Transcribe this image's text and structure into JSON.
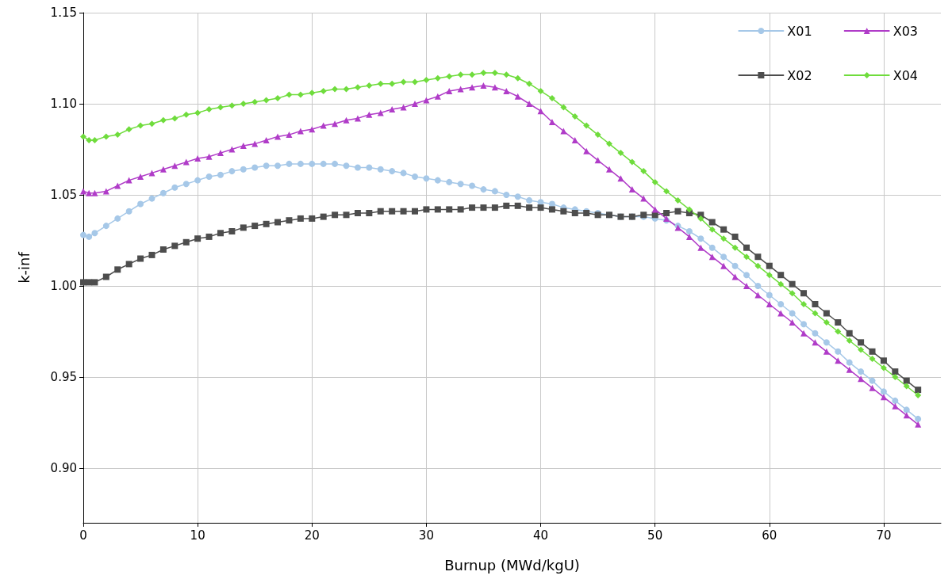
{
  "chart_data": {
    "type": "line",
    "xlabel": "Burnup (MWd/kgU)",
    "ylabel": "k-inf",
    "x": [
      0,
      0.5,
      1,
      2,
      3,
      4,
      5,
      6,
      7,
      8,
      9,
      10,
      11,
      12,
      13,
      14,
      15,
      16,
      17,
      18,
      19,
      20,
      21,
      22,
      23,
      24,
      25,
      26,
      27,
      28,
      29,
      30,
      31,
      32,
      33,
      34,
      35,
      36,
      37,
      38,
      39,
      40,
      41,
      42,
      43,
      44,
      45,
      46,
      47,
      48,
      49,
      50,
      51,
      52,
      53,
      54,
      55,
      56,
      57,
      58,
      59,
      60,
      61,
      62,
      63,
      64,
      65,
      66,
      67,
      68,
      69,
      70,
      71,
      72,
      73
    ],
    "series": [
      {
        "name": "X01",
        "color": "#a6c8e8",
        "marker": "circle",
        "values": [
          1.028,
          1.027,
          1.029,
          1.033,
          1.037,
          1.041,
          1.045,
          1.048,
          1.051,
          1.054,
          1.056,
          1.058,
          1.06,
          1.061,
          1.063,
          1.064,
          1.065,
          1.066,
          1.066,
          1.067,
          1.067,
          1.067,
          1.067,
          1.067,
          1.066,
          1.065,
          1.065,
          1.064,
          1.063,
          1.062,
          1.06,
          1.059,
          1.058,
          1.057,
          1.056,
          1.055,
          1.053,
          1.052,
          1.05,
          1.049,
          1.047,
          1.046,
          1.045,
          1.043,
          1.042,
          1.041,
          1.04,
          1.039,
          1.038,
          1.038,
          1.038,
          1.037,
          1.036,
          1.033,
          1.03,
          1.026,
          1.021,
          1.016,
          1.011,
          1.006,
          1.0,
          0.995,
          0.99,
          0.985,
          0.979,
          0.974,
          0.969,
          0.964,
          0.958,
          0.953,
          0.948,
          0.942,
          0.937,
          0.932,
          0.927
        ]
      },
      {
        "name": "X02",
        "color": "#4d4d4d",
        "marker": "square",
        "values": [
          1.002,
          1.002,
          1.002,
          1.005,
          1.009,
          1.012,
          1.015,
          1.017,
          1.02,
          1.022,
          1.024,
          1.026,
          1.027,
          1.029,
          1.03,
          1.032,
          1.033,
          1.034,
          1.035,
          1.036,
          1.037,
          1.037,
          1.038,
          1.039,
          1.039,
          1.04,
          1.04,
          1.041,
          1.041,
          1.041,
          1.041,
          1.042,
          1.042,
          1.042,
          1.042,
          1.043,
          1.043,
          1.043,
          1.044,
          1.044,
          1.043,
          1.043,
          1.042,
          1.041,
          1.04,
          1.04,
          1.039,
          1.039,
          1.038,
          1.038,
          1.039,
          1.039,
          1.04,
          1.041,
          1.04,
          1.039,
          1.035,
          1.031,
          1.027,
          1.021,
          1.016,
          1.011,
          1.006,
          1.001,
          0.996,
          0.99,
          0.985,
          0.98,
          0.974,
          0.969,
          0.964,
          0.959,
          0.953,
          0.948,
          0.943
        ]
      },
      {
        "name": "X03",
        "color": "#b03cc8",
        "marker": "triangle",
        "values": [
          1.052,
          1.051,
          1.051,
          1.052,
          1.055,
          1.058,
          1.06,
          1.062,
          1.064,
          1.066,
          1.068,
          1.07,
          1.071,
          1.073,
          1.075,
          1.077,
          1.078,
          1.08,
          1.082,
          1.083,
          1.085,
          1.086,
          1.088,
          1.089,
          1.091,
          1.092,
          1.094,
          1.095,
          1.097,
          1.098,
          1.1,
          1.102,
          1.104,
          1.107,
          1.108,
          1.109,
          1.11,
          1.109,
          1.107,
          1.104,
          1.1,
          1.096,
          1.09,
          1.085,
          1.08,
          1.074,
          1.069,
          1.064,
          1.059,
          1.053,
          1.048,
          1.042,
          1.037,
          1.032,
          1.027,
          1.021,
          1.016,
          1.011,
          1.005,
          1.0,
          0.995,
          0.99,
          0.985,
          0.98,
          0.974,
          0.969,
          0.964,
          0.959,
          0.954,
          0.949,
          0.944,
          0.939,
          0.934,
          0.929,
          0.924
        ]
      },
      {
        "name": "X04",
        "color": "#6fdc3c",
        "marker": "diamond",
        "values": [
          1.082,
          1.08,
          1.08,
          1.082,
          1.083,
          1.086,
          1.088,
          1.089,
          1.091,
          1.092,
          1.094,
          1.095,
          1.097,
          1.098,
          1.099,
          1.1,
          1.101,
          1.102,
          1.103,
          1.105,
          1.105,
          1.106,
          1.107,
          1.108,
          1.108,
          1.109,
          1.11,
          1.111,
          1.111,
          1.112,
          1.112,
          1.113,
          1.114,
          1.115,
          1.116,
          1.116,
          1.117,
          1.117,
          1.116,
          1.114,
          1.111,
          1.107,
          1.103,
          1.098,
          1.093,
          1.088,
          1.083,
          1.078,
          1.073,
          1.068,
          1.063,
          1.057,
          1.052,
          1.047,
          1.042,
          1.037,
          1.031,
          1.026,
          1.021,
          1.016,
          1.011,
          1.006,
          1.001,
          0.996,
          0.99,
          0.985,
          0.98,
          0.975,
          0.97,
          0.965,
          0.96,
          0.955,
          0.95,
          0.945,
          0.94
        ]
      }
    ],
    "xlim": [
      0,
      75
    ],
    "xticks": [
      0,
      10,
      20,
      30,
      40,
      50,
      60,
      70
    ],
    "ylim": [
      0.87,
      1.15
    ],
    "yticks": [
      {
        "value": 0.9,
        "label": "0.90"
      },
      {
        "value": 0.95,
        "label": "0.95"
      },
      {
        "value": 1.0,
        "label": "1.00"
      },
      {
        "value": 1.05,
        "label": "1.05"
      },
      {
        "value": 1.1,
        "label": "1.10"
      },
      {
        "value": 1.15,
        "label": "1.15"
      }
    ],
    "grid": true,
    "legend": "top right",
    "line_style": "solid"
  }
}
